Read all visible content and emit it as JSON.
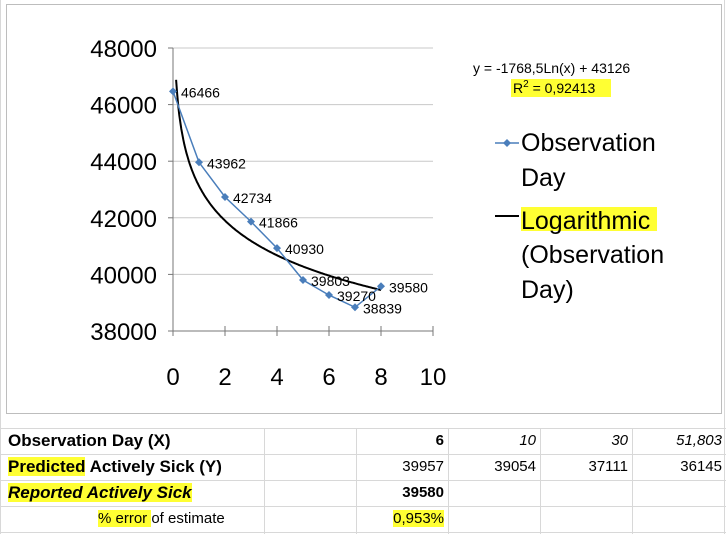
{
  "chart_data": {
    "type": "scatter",
    "xlim": [
      0,
      10
    ],
    "ylim": [
      38000,
      48000
    ],
    "x_ticks": [
      "0",
      "2",
      "4",
      "6",
      "8",
      "10"
    ],
    "y_ticks": [
      "48000",
      "46000",
      "44000",
      "42000",
      "40000",
      "38000"
    ],
    "grid": "horizontal gridlines",
    "legend_position": "right",
    "series": [
      {
        "name": "Observation Day",
        "color": "#4a7ebb",
        "x": [
          0,
          1,
          2,
          3,
          4,
          5,
          6,
          7,
          8
        ],
        "y": [
          46466,
          43962,
          42734,
          41866,
          40930,
          39803,
          39270,
          38839,
          39580
        ],
        "point_labels": [
          "46466",
          "43962",
          "42734",
          "41866",
          "40930",
          "39803",
          "39270",
          "38839",
          "39580"
        ]
      },
      {
        "name": "Logarithmic (Observation Day)",
        "color": "#000000",
        "type": "trendline",
        "a": -1768.5,
        "b": 43126
      }
    ],
    "trendline_equation": "y = -1768,5Ln(x) + 43126",
    "r_squared_label": "R",
    "r_squared_sup": "2",
    "r_squared_value": " = 0,92413",
    "legend": {
      "series1": [
        "Observation",
        "Day"
      ],
      "series2": [
        "Logarithmic",
        "(Observation",
        "Day)"
      ]
    }
  },
  "table": {
    "row1": {
      "label": "Observation Day (X)",
      "values": [
        "6",
        "10",
        "30",
        "51,803"
      ]
    },
    "row2": {
      "label_highlight": "Predicted",
      "label_rest": " Actively Sick (Y)",
      "values": [
        "39957",
        "39054",
        "37111",
        "36145"
      ]
    },
    "row3": {
      "label": "Reported Actively Sick",
      "values": [
        "39580"
      ]
    },
    "row4": {
      "label_highlight": "% error ",
      "label_rest": "of estimate",
      "values": [
        "0,953%"
      ]
    }
  },
  "colors": {
    "highlight": "#ffff33",
    "series_line": "#4a7ebb",
    "trendline": "#000000",
    "gridline": "#d8d8d8"
  }
}
